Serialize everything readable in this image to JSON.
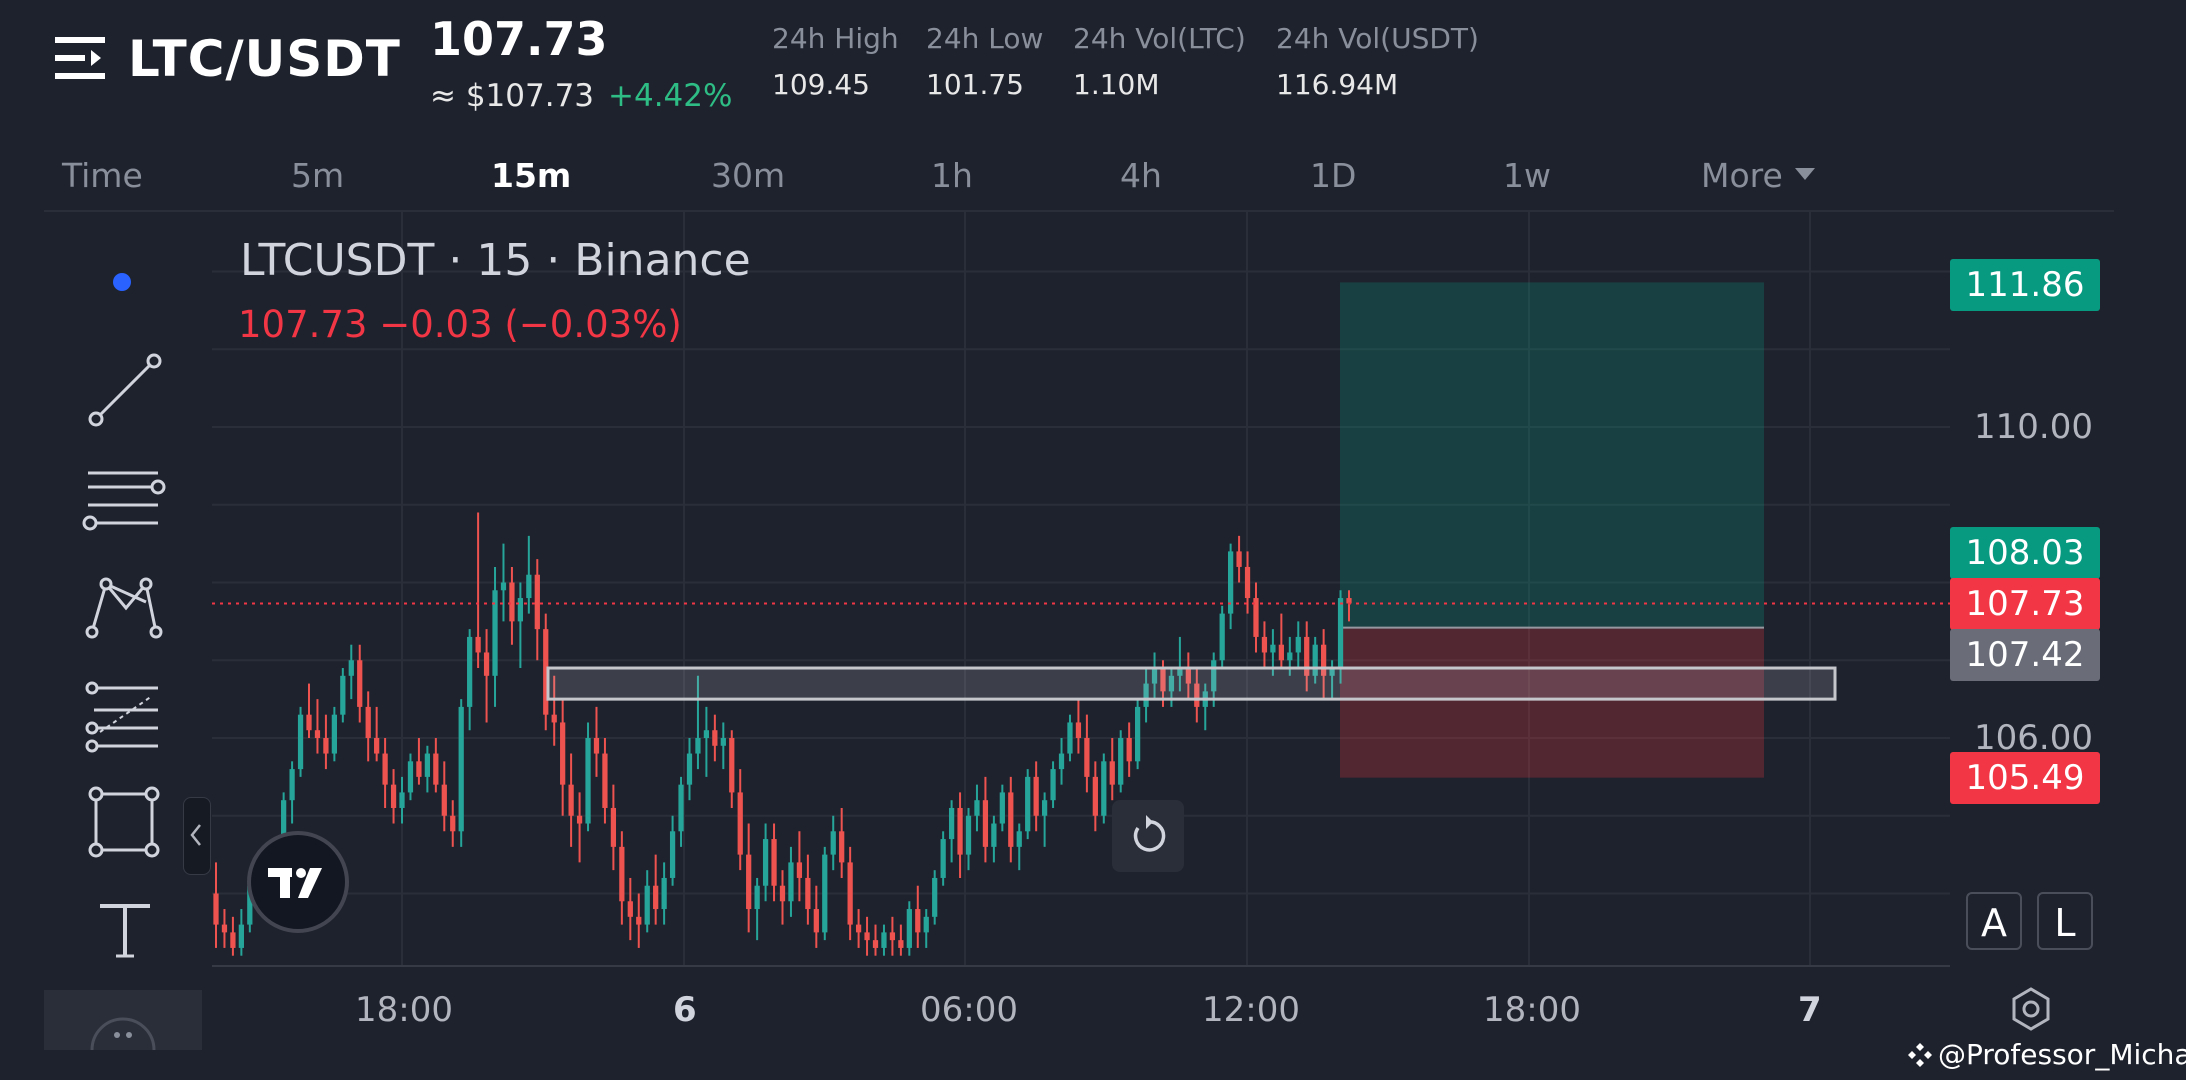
{
  "header": {
    "pair": "LTC/USDT",
    "last_price": "107.73",
    "usd_price": "≈ $107.73",
    "change_pct": "+4.42%",
    "stats": [
      {
        "label": "24h High",
        "value": "109.45"
      },
      {
        "label": "24h Low",
        "value": "101.75"
      },
      {
        "label": "24h Vol(LTC)",
        "value": "1.10M"
      },
      {
        "label": "24h Vol(USDT)",
        "value": "116.94M"
      }
    ]
  },
  "timeframes": [
    "Time",
    "5m",
    "15m",
    "30m",
    "1h",
    "4h",
    "1D",
    "1w",
    "More"
  ],
  "active_timeframe": "15m",
  "chart": {
    "legend_title": "LTCUSDT · 15 · Binance",
    "legend_values": "107.73  −0.03 (−0.03%)",
    "price_labels": [
      "110.00",
      "106.00"
    ],
    "time_labels": [
      "18:00",
      "6",
      "06:00",
      "12:00",
      "18:00",
      "7"
    ],
    "price_tags": {
      "target": "111.86",
      "level_high": "108.03",
      "current": "107.73",
      "entry": "107.42",
      "stop": "105.49"
    },
    "scale_buttons": [
      "A",
      "L"
    ]
  },
  "chart_data": {
    "type": "candlestick",
    "symbol": "LTCUSDT",
    "interval": "15",
    "exchange": "Binance",
    "last": 107.73,
    "change": -0.03,
    "change_pct": -0.03,
    "ylim": [
      103.2,
      112.5
    ],
    "position": {
      "target": 111.86,
      "entry": 107.42,
      "stop": 105.49
    },
    "zone": [
      106.5,
      106.9
    ],
    "candles": [
      [
        104.0,
        104.4,
        103.3,
        103.6
      ],
      [
        103.6,
        103.8,
        103.3,
        103.5
      ],
      [
        103.5,
        103.7,
        103.2,
        103.3
      ],
      [
        103.3,
        103.8,
        103.2,
        103.6
      ],
      [
        103.6,
        104.2,
        103.5,
        104.1
      ],
      [
        104.1,
        104.4,
        103.9,
        104.2
      ],
      [
        104.2,
        104.5,
        104.0,
        104.3
      ],
      [
        104.3,
        104.6,
        104.1,
        104.4
      ],
      [
        104.4,
        105.3,
        104.2,
        105.2
      ],
      [
        105.2,
        105.7,
        104.9,
        105.6
      ],
      [
        105.6,
        106.4,
        105.5,
        106.3
      ],
      [
        106.3,
        106.7,
        106.0,
        106.1
      ],
      [
        106.1,
        106.5,
        105.8,
        106.0
      ],
      [
        106.0,
        106.3,
        105.6,
        105.8
      ],
      [
        105.8,
        106.4,
        105.7,
        106.3
      ],
      [
        106.3,
        106.9,
        106.2,
        106.8
      ],
      [
        106.8,
        107.2,
        106.5,
        107.0
      ],
      [
        107.0,
        107.2,
        106.2,
        106.4
      ],
      [
        106.4,
        106.6,
        105.7,
        106.0
      ],
      [
        106.0,
        106.4,
        105.7,
        105.8
      ],
      [
        105.8,
        106.0,
        105.1,
        105.4
      ],
      [
        105.4,
        105.6,
        104.9,
        105.1
      ],
      [
        105.1,
        105.5,
        104.9,
        105.3
      ],
      [
        105.3,
        105.8,
        105.2,
        105.7
      ],
      [
        105.7,
        106.0,
        105.4,
        105.5
      ],
      [
        105.5,
        105.9,
        105.3,
        105.8
      ],
      [
        105.8,
        106.0,
        105.3,
        105.4
      ],
      [
        105.4,
        105.7,
        104.8,
        105.0
      ],
      [
        105.0,
        105.2,
        104.6,
        104.8
      ],
      [
        104.8,
        106.5,
        104.6,
        106.4
      ],
      [
        106.4,
        107.4,
        106.1,
        107.3
      ],
      [
        107.3,
        108.9,
        106.9,
        107.1
      ],
      [
        107.1,
        107.4,
        106.2,
        106.8
      ],
      [
        106.8,
        108.2,
        106.4,
        107.9
      ],
      [
        107.9,
        108.5,
        107.5,
        108.0
      ],
      [
        108.0,
        108.2,
        107.2,
        107.5
      ],
      [
        107.5,
        108.0,
        106.9,
        107.8
      ],
      [
        107.8,
        108.6,
        107.6,
        108.1
      ],
      [
        108.1,
        108.3,
        107.0,
        107.4
      ],
      [
        107.4,
        107.6,
        106.1,
        106.3
      ],
      [
        106.3,
        106.8,
        105.9,
        106.2
      ],
      [
        106.2,
        106.5,
        105.0,
        105.4
      ],
      [
        105.4,
        105.8,
        104.6,
        105.0
      ],
      [
        105.0,
        105.3,
        104.4,
        104.9
      ],
      [
        104.9,
        106.2,
        104.8,
        106.0
      ],
      [
        106.0,
        106.4,
        105.5,
        105.8
      ],
      [
        105.8,
        106.0,
        104.9,
        105.1
      ],
      [
        105.1,
        105.4,
        104.3,
        104.6
      ],
      [
        104.6,
        104.8,
        103.6,
        103.9
      ],
      [
        103.9,
        104.2,
        103.4,
        103.7
      ],
      [
        103.7,
        104.0,
        103.3,
        103.6
      ],
      [
        103.6,
        104.3,
        103.5,
        104.1
      ],
      [
        104.1,
        104.5,
        103.6,
        103.8
      ],
      [
        103.8,
        104.4,
        103.6,
        104.2
      ],
      [
        104.2,
        105.0,
        104.1,
        104.8
      ],
      [
        104.8,
        105.5,
        104.6,
        105.4
      ],
      [
        105.4,
        106.0,
        105.2,
        105.8
      ],
      [
        105.8,
        106.8,
        105.6,
        106.0
      ],
      [
        106.0,
        106.4,
        105.5,
        106.1
      ],
      [
        106.1,
        106.3,
        105.7,
        105.9
      ],
      [
        105.9,
        106.2,
        105.6,
        106.0
      ],
      [
        106.0,
        106.1,
        105.1,
        105.3
      ],
      [
        105.3,
        105.6,
        104.3,
        104.5
      ],
      [
        104.5,
        104.9,
        103.5,
        103.8
      ],
      [
        103.8,
        104.2,
        103.4,
        104.1
      ],
      [
        104.1,
        104.9,
        103.9,
        104.7
      ],
      [
        104.7,
        104.9,
        103.9,
        104.1
      ],
      [
        104.1,
        104.3,
        103.6,
        103.9
      ],
      [
        103.9,
        104.6,
        103.7,
        104.4
      ],
      [
        104.4,
        104.8,
        103.9,
        104.2
      ],
      [
        104.2,
        104.5,
        103.6,
        103.8
      ],
      [
        103.8,
        104.1,
        103.3,
        103.5
      ],
      [
        103.5,
        104.6,
        103.4,
        104.5
      ],
      [
        104.5,
        105.0,
        104.3,
        104.8
      ],
      [
        104.8,
        105.1,
        104.2,
        104.4
      ],
      [
        104.4,
        104.6,
        103.4,
        103.6
      ],
      [
        103.6,
        103.8,
        103.3,
        103.5
      ],
      [
        103.5,
        103.7,
        103.2,
        103.4
      ],
      [
        103.4,
        103.6,
        103.2,
        103.3
      ],
      [
        103.3,
        103.6,
        103.2,
        103.5
      ],
      [
        103.5,
        103.7,
        103.2,
        103.4
      ],
      [
        103.4,
        103.6,
        103.2,
        103.3
      ],
      [
        103.3,
        103.9,
        103.2,
        103.8
      ],
      [
        103.8,
        104.1,
        103.3,
        103.5
      ],
      [
        103.5,
        103.8,
        103.3,
        103.7
      ],
      [
        103.7,
        104.3,
        103.6,
        104.2
      ],
      [
        104.2,
        104.8,
        104.1,
        104.7
      ],
      [
        104.7,
        105.2,
        104.4,
        105.1
      ],
      [
        105.1,
        105.3,
        104.2,
        104.5
      ],
      [
        104.5,
        105.1,
        104.3,
        105.0
      ],
      [
        105.0,
        105.4,
        104.8,
        105.2
      ],
      [
        105.2,
        105.5,
        104.4,
        104.6
      ],
      [
        104.6,
        105.0,
        104.4,
        104.9
      ],
      [
        104.9,
        105.4,
        104.8,
        105.3
      ],
      [
        105.3,
        105.5,
        104.4,
        104.6
      ],
      [
        104.6,
        104.9,
        104.3,
        104.8
      ],
      [
        104.8,
        105.6,
        104.7,
        105.5
      ],
      [
        105.5,
        105.7,
        104.8,
        105.0
      ],
      [
        105.0,
        105.3,
        104.6,
        105.2
      ],
      [
        105.2,
        105.7,
        105.1,
        105.6
      ],
      [
        105.6,
        106.0,
        105.4,
        105.8
      ],
      [
        105.8,
        106.3,
        105.7,
        106.2
      ],
      [
        106.2,
        106.5,
        105.8,
        106.0
      ],
      [
        106.0,
        106.3,
        105.3,
        105.5
      ],
      [
        105.5,
        105.7,
        104.8,
        105.0
      ],
      [
        105.0,
        105.8,
        104.9,
        105.7
      ],
      [
        105.7,
        106.0,
        105.2,
        105.4
      ],
      [
        105.4,
        106.1,
        105.3,
        106.0
      ],
      [
        106.0,
        106.2,
        105.5,
        105.7
      ],
      [
        105.7,
        106.5,
        105.6,
        106.4
      ],
      [
        106.4,
        106.9,
        106.2,
        106.7
      ],
      [
        106.7,
        107.1,
        106.5,
        106.9
      ],
      [
        106.9,
        107.0,
        106.4,
        106.6
      ],
      [
        106.6,
        106.9,
        106.4,
        106.8
      ],
      [
        106.8,
        107.3,
        106.6,
        106.9
      ],
      [
        106.9,
        107.1,
        106.5,
        106.7
      ],
      [
        106.7,
        106.9,
        106.2,
        106.4
      ],
      [
        106.4,
        106.7,
        106.1,
        106.6
      ],
      [
        106.6,
        107.1,
        106.4,
        107.0
      ],
      [
        107.0,
        107.7,
        106.9,
        107.6
      ],
      [
        107.6,
        108.5,
        107.4,
        108.4
      ],
      [
        108.4,
        108.6,
        108.0,
        108.2
      ],
      [
        108.2,
        108.4,
        107.6,
        107.8
      ],
      [
        107.8,
        108.0,
        107.1,
        107.3
      ],
      [
        107.3,
        107.5,
        106.9,
        107.1
      ],
      [
        107.1,
        107.4,
        106.8,
        107.2
      ],
      [
        107.2,
        107.6,
        106.9,
        107.0
      ],
      [
        107.0,
        107.3,
        106.8,
        107.1
      ],
      [
        107.1,
        107.5,
        106.9,
        107.3
      ],
      [
        107.3,
        107.5,
        106.6,
        106.8
      ],
      [
        106.8,
        107.3,
        106.7,
        107.2
      ],
      [
        107.2,
        107.4,
        106.5,
        106.8
      ],
      [
        106.8,
        107.0,
        106.5,
        106.9
      ],
      [
        106.9,
        107.9,
        106.7,
        107.8
      ],
      [
        107.8,
        107.9,
        107.5,
        107.73
      ]
    ]
  },
  "watermark": "@Professor_Michael"
}
